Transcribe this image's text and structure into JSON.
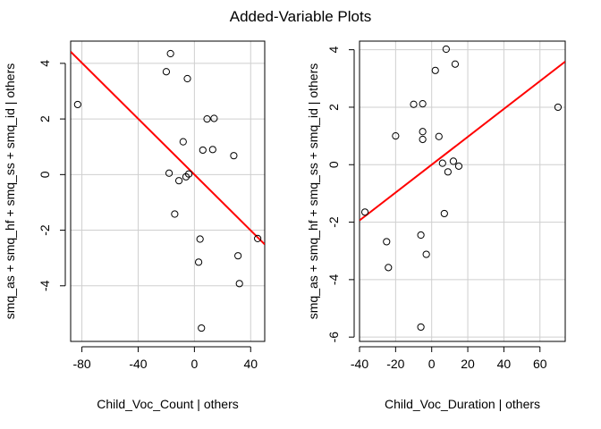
{
  "figure": {
    "title": "Added-Variable Plots"
  },
  "chart_data": [
    {
      "type": "scatter",
      "xlabel": "Child_Voc_Count | others",
      "ylabel": "smq_as + smq_hf + smq_ss + smq_id  | others",
      "xlim": [
        -88,
        50
      ],
      "ylim": [
        -6.0,
        4.8
      ],
      "xticks": [
        -80,
        -40,
        0,
        40
      ],
      "xtick_labels": [
        "-80",
        "-40",
        "0",
        "40"
      ],
      "yticks": [
        -4,
        -2,
        0,
        2,
        4
      ],
      "ytick_labels": [
        "-4",
        "-2",
        "0",
        "2",
        "4"
      ],
      "grid": true,
      "point_color": "#000000",
      "fit_color": "#ff0000",
      "points": [
        {
          "x": -83,
          "y": 2.52
        },
        {
          "x": -17,
          "y": 4.35
        },
        {
          "x": -20,
          "y": 3.7
        },
        {
          "x": -5,
          "y": 3.45
        },
        {
          "x": 9,
          "y": 2.0
        },
        {
          "x": 14,
          "y": 2.02
        },
        {
          "x": -8,
          "y": 1.18
        },
        {
          "x": 6,
          "y": 0.88
        },
        {
          "x": 13,
          "y": 0.9
        },
        {
          "x": 28,
          "y": 0.68
        },
        {
          "x": -18,
          "y": 0.05
        },
        {
          "x": -4,
          "y": 0.02
        },
        {
          "x": -6,
          "y": -0.08
        },
        {
          "x": -11,
          "y": -0.22
        },
        {
          "x": -14,
          "y": -1.42
        },
        {
          "x": 4,
          "y": -2.32
        },
        {
          "x": 45,
          "y": -2.3
        },
        {
          "x": 31,
          "y": -2.92
        },
        {
          "x": 3,
          "y": -3.15
        },
        {
          "x": 32,
          "y": -3.92
        },
        {
          "x": 5,
          "y": -5.52
        }
      ],
      "fit_line": {
        "intercept": 0.0,
        "slope": -0.0502
      }
    },
    {
      "type": "scatter",
      "xlabel": "Child_Voc_Duration | others",
      "ylabel": "smq_as + smq_hf + smq_ss + smq_id  | others",
      "xlim": [
        -40,
        74
      ],
      "ylim": [
        -6.15,
        4.3
      ],
      "xticks": [
        -40,
        -20,
        0,
        20,
        40,
        60
      ],
      "xtick_labels": [
        "-40",
        "-20",
        "0",
        "20",
        "40",
        "60"
      ],
      "yticks": [
        -6,
        -4,
        -2,
        0,
        2,
        4
      ],
      "ytick_labels": [
        "-6",
        "-4",
        "-2",
        "0",
        "2",
        "4"
      ],
      "grid": true,
      "point_color": "#000000",
      "fit_color": "#ff0000",
      "points": [
        {
          "x": -37,
          "y": -1.65
        },
        {
          "x": -25,
          "y": -2.68
        },
        {
          "x": -24,
          "y": -3.58
        },
        {
          "x": -20,
          "y": 1.0
        },
        {
          "x": -10,
          "y": 2.1
        },
        {
          "x": -5,
          "y": 2.12
        },
        {
          "x": -5,
          "y": 1.15
        },
        {
          "x": -5,
          "y": 0.88
        },
        {
          "x": -6,
          "y": -2.45
        },
        {
          "x": -3,
          "y": -3.12
        },
        {
          "x": -6,
          "y": -5.65
        },
        {
          "x": 2,
          "y": 3.28
        },
        {
          "x": 8,
          "y": 4.02
        },
        {
          "x": 13,
          "y": 3.5
        },
        {
          "x": 4,
          "y": 0.98
        },
        {
          "x": 6,
          "y": 0.05
        },
        {
          "x": 12,
          "y": 0.12
        },
        {
          "x": 15,
          "y": -0.05
        },
        {
          "x": 9,
          "y": -0.25
        },
        {
          "x": 7,
          "y": -1.7
        },
        {
          "x": 70,
          "y": 2.0
        }
      ],
      "fit_line": {
        "intercept": 0.0,
        "slope": 0.0485
      }
    }
  ]
}
